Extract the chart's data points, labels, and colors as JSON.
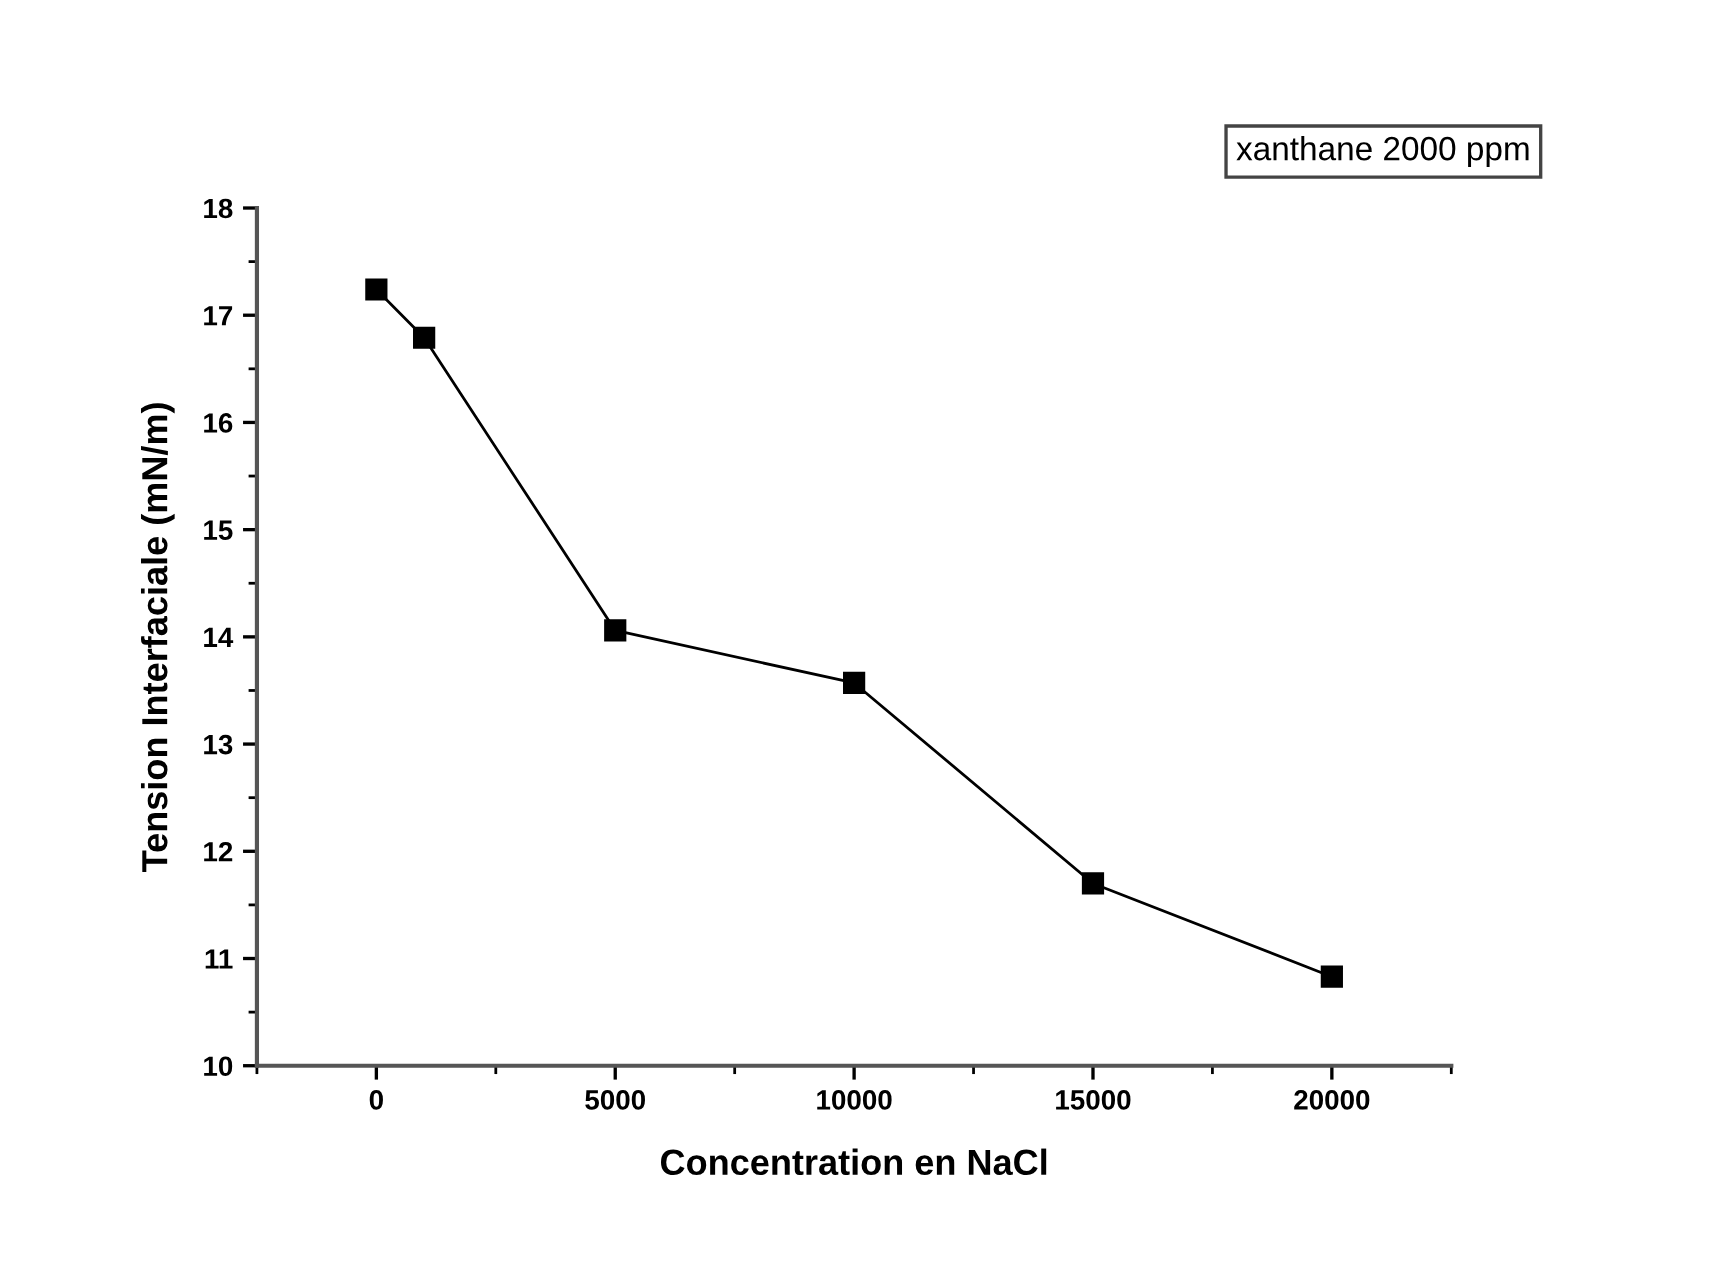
{
  "chart_data": {
    "type": "line",
    "xlabel": "Concentration en NaCl",
    "ylabel": "Tension Interfaciale (mN/m)",
    "annotations": [
      "xanthane 2000 ppm"
    ],
    "x": [
      0,
      1000,
      5000,
      10000,
      15000,
      20000
    ],
    "series": [
      {
        "color": "#000000",
        "values": [
          17.24,
          16.79,
          14.06,
          13.57,
          11.7,
          10.83
        ]
      }
    ],
    "xlim": [
      -2500,
      22500
    ],
    "xticks": [
      0,
      5000,
      10000,
      15000,
      20000
    ],
    "ylim": [
      10,
      18
    ],
    "yticks": [
      10,
      11,
      12,
      13,
      14,
      15,
      16,
      17,
      18
    ],
    "marker": "square",
    "line_style": "solid",
    "grid": false,
    "legend": false
  }
}
